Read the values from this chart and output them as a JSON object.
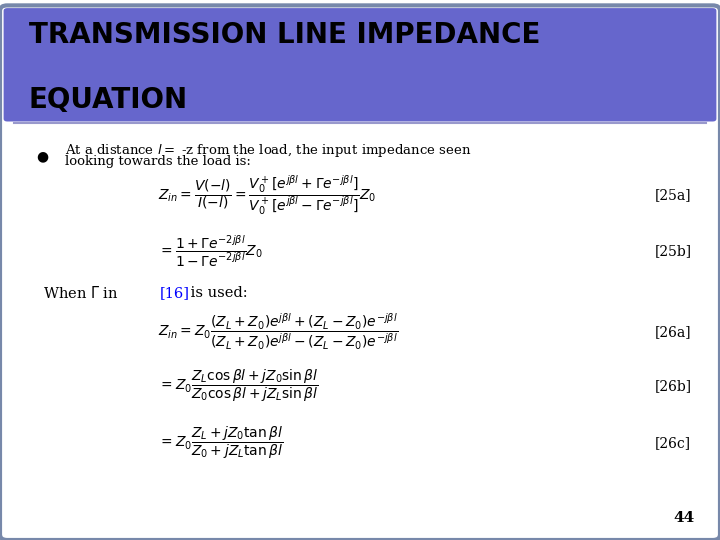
{
  "title_line1": "TRANSMISSION LINE IMPEDANCE",
  "title_line2": "EQUATION",
  "title_bg_color": "#6666cc",
  "title_text_color": "#000000",
  "body_bg_color": "#ffffff",
  "slide_border_color": "#7788aa",
  "bullet_color": "#000000",
  "label25a": "[25a]",
  "label25b": "[25b]",
  "label26a": "[26a]",
  "label26b": "[26b]",
  "label26c": "[26c]",
  "ref_color": "#0000ff",
  "page_number": "44",
  "bullet_text_line1": "At a distance $l =$ -z from the load, the input impedance seen",
  "bullet_text_line2": "looking towards the load is:",
  "when_gamma_part1": "When $\\Gamma$ in ",
  "when_gamma_ref": "[16]",
  "when_gamma_part2": " is used:"
}
